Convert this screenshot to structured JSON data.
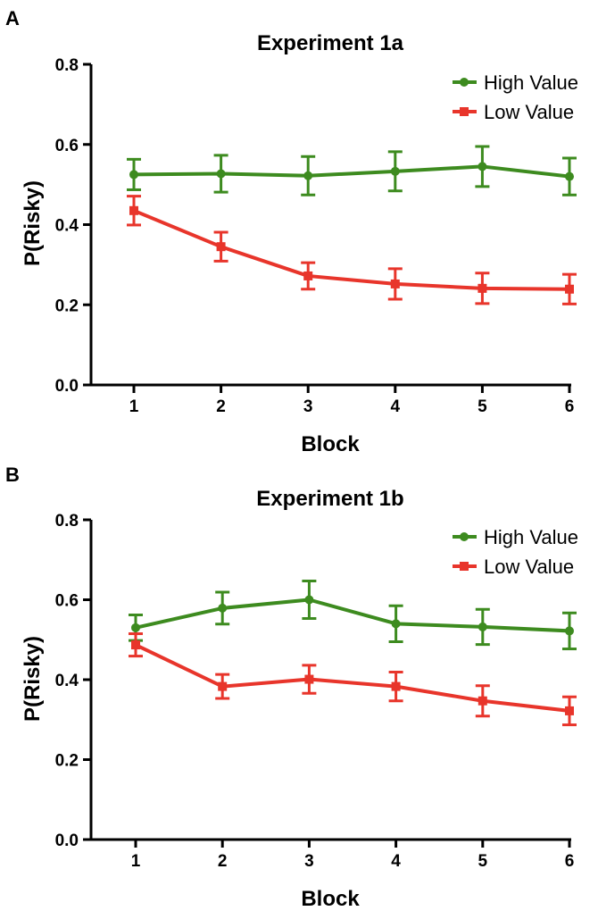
{
  "colors": {
    "high": "#3d8b1f",
    "low": "#e8352b",
    "axis": "#000000"
  },
  "chart_data": [
    {
      "type": "line",
      "panel": "A",
      "title": "Experiment 1a",
      "xlabel": "Block",
      "ylabel": "P(Risky)",
      "x": [
        1,
        2,
        3,
        4,
        5,
        6
      ],
      "x_tick_labels": [
        "1",
        "2",
        "3",
        "4",
        "5",
        "6"
      ],
      "y_ticks": [
        0.0,
        0.2,
        0.4,
        0.6,
        0.8
      ],
      "y_tick_labels": [
        "0.0",
        "0.2",
        "0.4",
        "0.6",
        "0.8"
      ],
      "ylim": [
        0,
        0.8
      ],
      "grid": false,
      "legend_position": "top-right",
      "series": [
        {
          "name": "High Value",
          "color": "#3d8b1f",
          "marker": "circle",
          "values": [
            0.525,
            0.527,
            0.522,
            0.533,
            0.545,
            0.52
          ],
          "errors": [
            0.038,
            0.046,
            0.048,
            0.049,
            0.05,
            0.046
          ]
        },
        {
          "name": "Low Value",
          "color": "#e8352b",
          "marker": "square",
          "values": [
            0.435,
            0.345,
            0.272,
            0.252,
            0.241,
            0.239
          ],
          "errors": [
            0.036,
            0.036,
            0.033,
            0.038,
            0.038,
            0.037
          ]
        }
      ]
    },
    {
      "type": "line",
      "panel": "B",
      "title": "Experiment 1b",
      "xlabel": "Block",
      "ylabel": "P(Risky)",
      "x": [
        1,
        2,
        3,
        4,
        5,
        6
      ],
      "x_tick_labels": [
        "1",
        "2",
        "3",
        "4",
        "5",
        "6"
      ],
      "y_ticks": [
        0.0,
        0.2,
        0.4,
        0.6,
        0.8
      ],
      "y_tick_labels": [
        "0.0",
        "0.2",
        "0.4",
        "0.6",
        "0.8"
      ],
      "ylim": [
        0,
        0.8
      ],
      "grid": false,
      "legend_position": "top-right",
      "series": [
        {
          "name": "High Value",
          "color": "#3d8b1f",
          "marker": "circle",
          "values": [
            0.53,
            0.579,
            0.6,
            0.54,
            0.532,
            0.522
          ],
          "errors": [
            0.032,
            0.04,
            0.047,
            0.045,
            0.044,
            0.045
          ]
        },
        {
          "name": "Low Value",
          "color": "#e8352b",
          "marker": "square",
          "values": [
            0.487,
            0.383,
            0.401,
            0.383,
            0.347,
            0.322
          ],
          "errors": [
            0.028,
            0.03,
            0.035,
            0.036,
            0.038,
            0.035
          ]
        }
      ]
    }
  ]
}
